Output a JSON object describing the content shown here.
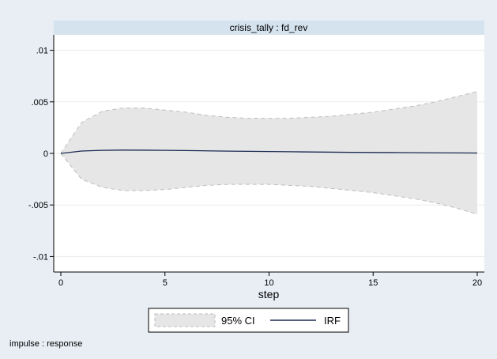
{
  "chart_data": {
    "type": "line",
    "panel_title": "crisis_tally : fd_rev",
    "xlabel": "step",
    "ylabel": "",
    "xlim": [
      0,
      20
    ],
    "ylim": [
      -0.0115,
      0.0115
    ],
    "x_ticks": [
      0,
      5,
      10,
      15,
      20
    ],
    "x_tick_labels": [
      "0",
      "5",
      "10",
      "15",
      "20"
    ],
    "y_ticks": [
      0.01,
      0.005,
      0,
      -0.005,
      -0.01
    ],
    "y_tick_labels": [
      ".01",
      ".005",
      "0",
      "-.005",
      "-.01"
    ],
    "grid": true,
    "legend_placement": "bottom",
    "note": "impulse : response",
    "x": [
      0,
      1,
      2,
      3,
      4,
      5,
      6,
      7,
      8,
      9,
      10,
      11,
      12,
      13,
      14,
      15,
      16,
      17,
      18,
      19,
      20
    ],
    "series": [
      {
        "name": "95% CI",
        "kind": "band",
        "lower": [
          0,
          -0.0025,
          -0.0033,
          -0.0036,
          -0.0036,
          -0.0035,
          -0.0033,
          -0.0031,
          -0.003,
          -0.003,
          -0.003,
          -0.0031,
          -0.0032,
          -0.0034,
          -0.0036,
          -0.0038,
          -0.0041,
          -0.0044,
          -0.0048,
          -0.0053,
          -0.0059
        ],
        "upper": [
          0,
          0.003,
          0.0041,
          0.0044,
          0.0044,
          0.0042,
          0.004,
          0.0037,
          0.0035,
          0.0034,
          0.0034,
          0.0034,
          0.0035,
          0.0036,
          0.0038,
          0.004,
          0.0043,
          0.0046,
          0.005,
          0.0055,
          0.006
        ],
        "color": "#e6e6e6"
      },
      {
        "name": "IRF",
        "kind": "line",
        "values": [
          0,
          0.00023,
          0.0003,
          0.00032,
          0.00031,
          0.0003,
          0.00028,
          0.00025,
          0.00022,
          0.0002,
          0.00018,
          0.00016,
          0.00014,
          0.00012,
          0.0001,
          9e-05,
          8e-05,
          7e-05,
          6e-05,
          5e-05,
          4e-05
        ],
        "color": "#1a2a52"
      }
    ]
  }
}
